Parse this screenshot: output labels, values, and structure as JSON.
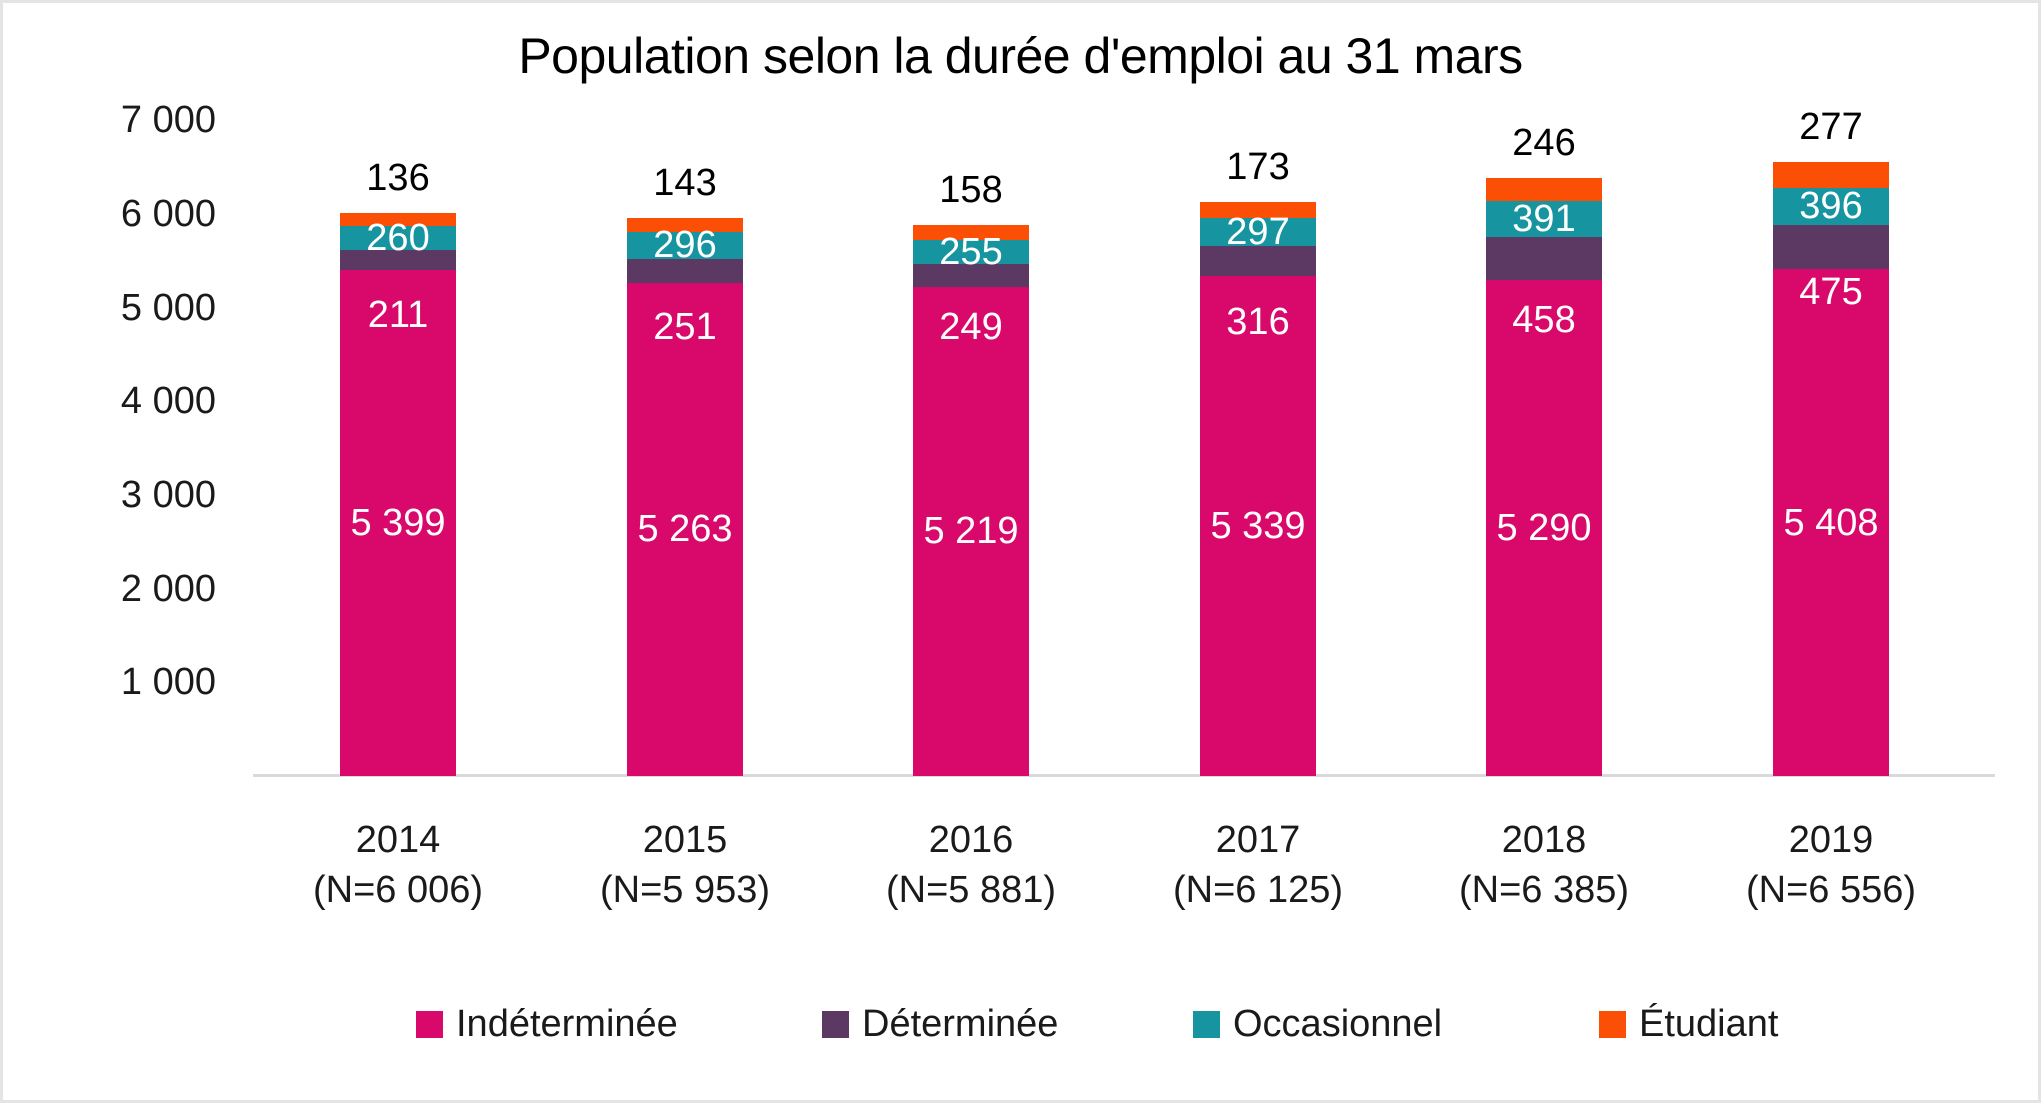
{
  "chart_data": {
    "type": "bar",
    "stacked": true,
    "title": "Population selon la durée d'emploi au 31 mars",
    "categories": [
      "2014",
      "2015",
      "2016",
      "2017",
      "2018",
      "2019"
    ],
    "category_sublabels": [
      "(N=6 006)",
      "(N=5 953)",
      "(N=5 881)",
      "(N=6 125)",
      "(N=6 385)",
      "(N=6 556)"
    ],
    "totals": [
      6006,
      5953,
      5881,
      6125,
      6385,
      6556
    ],
    "series": [
      {
        "name": "Indéterminée",
        "key": "indeterminee",
        "color": "#D9096B",
        "values": [
          5399,
          5263,
          5219,
          5339,
          5290,
          5408
        ],
        "display": [
          "5 399",
          "5 263",
          "5 219",
          "5 339",
          "5 290",
          "5 408"
        ],
        "label_color": "#FFFFFF",
        "label_placement": "center"
      },
      {
        "name": "Déterminée",
        "key": "determinee",
        "color": "#5C3963",
        "values": [
          211,
          251,
          249,
          316,
          458,
          475
        ],
        "display": [
          "211",
          "251",
          "249",
          "316",
          "458",
          "475"
        ],
        "label_color": "#FFFFFF",
        "label_placement": "below-segment"
      },
      {
        "name": "Occasionnel",
        "key": "occasionnel",
        "color": "#1694A0",
        "values": [
          260,
          296,
          255,
          297,
          391,
          396
        ],
        "display": [
          "260",
          "296",
          "255",
          "297",
          "391",
          "396"
        ],
        "label_color": "#FFFFFF",
        "label_placement": "center"
      },
      {
        "name": "Étudiant",
        "key": "etudiant",
        "color": "#FA4F05",
        "values": [
          136,
          143,
          158,
          173,
          246,
          277
        ],
        "display": [
          "136",
          "143",
          "158",
          "173",
          "246",
          "277"
        ],
        "label_color": "#000000",
        "label_placement": "outside-top"
      }
    ],
    "y_axis": {
      "min": 0,
      "max": 7000,
      "tick_step": 1000,
      "gridlines": false,
      "ticks": [
        {
          "value": 7000,
          "label": "7 000"
        },
        {
          "value": 6000,
          "label": "6 000"
        },
        {
          "value": 5000,
          "label": "5 000"
        },
        {
          "value": 4000,
          "label": "4 000"
        },
        {
          "value": 3000,
          "label": "3 000"
        },
        {
          "value": 2000,
          "label": "2 000"
        },
        {
          "value": 1000,
          "label": "1 000"
        }
      ]
    },
    "legend": {
      "position": "bottom",
      "items": [
        {
          "label": "Indéterminée",
          "key": "indeterminee"
        },
        {
          "label": "Déterminée",
          "key": "determinee"
        },
        {
          "label": "Occasionnel",
          "key": "occasionnel"
        },
        {
          "label": "Étudiant",
          "key": "etudiant"
        }
      ]
    }
  },
  "colors": {
    "axis_line": "#D9D9D9",
    "canvas_border": "#E2E4E6",
    "text": "#1A1A1A"
  }
}
